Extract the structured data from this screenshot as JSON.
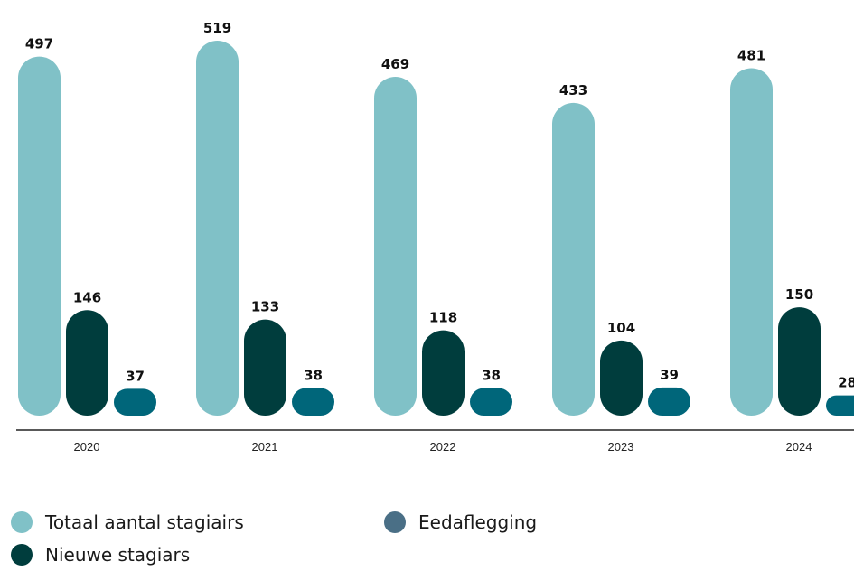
{
  "chart_data": {
    "type": "bar",
    "categories": [
      "2020",
      "2021",
      "2022",
      "2023",
      "2024"
    ],
    "series": [
      {
        "name": "Totaal aantal stagiairs",
        "values": [
          497,
          519,
          469,
          433,
          481
        ],
        "color": "#80c1c7"
      },
      {
        "name": "Nieuwe stagiars",
        "values": [
          146,
          133,
          118,
          104,
          150
        ],
        "color": "#003d3d"
      },
      {
        "name": "Eedaflegging",
        "values": [
          37,
          38,
          38,
          39,
          28
        ],
        "color": "#00667a"
      }
    ],
    "legend_colors": [
      "#80c1c7",
      "#003d3d",
      "#4a6f86"
    ],
    "title": "",
    "xlabel": "",
    "ylabel": "",
    "grid": false,
    "legend_position": "bottom-left"
  }
}
